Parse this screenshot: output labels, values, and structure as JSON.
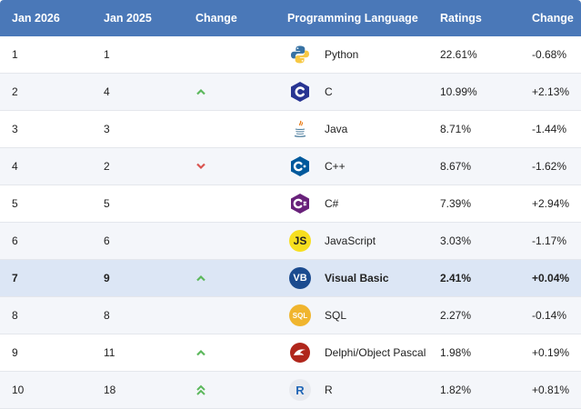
{
  "header": {
    "col_jan2026": "Jan 2026",
    "col_jan2025": "Jan 2025",
    "col_change": "Change",
    "col_language": "Programming Language",
    "col_ratings": "Ratings",
    "col_change_pct": "Change"
  },
  "colors": {
    "header_bg": "#4a78b8",
    "highlight_bg": "#dce6f5",
    "up_arrow": "#5cb85c",
    "down_arrow": "#d9534f"
  },
  "rows": [
    {
      "rank_2026": "1",
      "rank_2025": "1",
      "trend": "none",
      "language": "Python",
      "rating": "22.61%",
      "change": "-0.68%",
      "icon": "python-logo-icon"
    },
    {
      "rank_2026": "2",
      "rank_2025": "4",
      "trend": "up",
      "language": "C",
      "rating": "10.99%",
      "change": "+2.13%",
      "icon": "c-logo-icon"
    },
    {
      "rank_2026": "3",
      "rank_2025": "3",
      "trend": "none",
      "language": "Java",
      "rating": "8.71%",
      "change": "-1.44%",
      "icon": "java-logo-icon"
    },
    {
      "rank_2026": "4",
      "rank_2025": "2",
      "trend": "down",
      "language": "C++",
      "rating": "8.67%",
      "change": "-1.62%",
      "icon": "cpp-logo-icon"
    },
    {
      "rank_2026": "5",
      "rank_2025": "5",
      "trend": "none",
      "language": "C#",
      "rating": "7.39%",
      "change": "+2.94%",
      "icon": "csharp-logo-icon"
    },
    {
      "rank_2026": "6",
      "rank_2025": "6",
      "trend": "none",
      "language": "JavaScript",
      "rating": "3.03%",
      "change": "-1.17%",
      "icon": "javascript-logo-icon",
      "logo_text": "JS"
    },
    {
      "rank_2026": "7",
      "rank_2025": "9",
      "trend": "up",
      "language": "Visual Basic",
      "rating": "2.41%",
      "change": "+0.04%",
      "icon": "visual-basic-logo-icon",
      "logo_text": "VB",
      "highlighted": true
    },
    {
      "rank_2026": "8",
      "rank_2025": "8",
      "trend": "none",
      "language": "SQL",
      "rating": "2.27%",
      "change": "-0.14%",
      "icon": "sql-logo-icon",
      "logo_text": "SQL"
    },
    {
      "rank_2026": "9",
      "rank_2025": "11",
      "trend": "up",
      "language": "Delphi/Object Pascal",
      "rating": "1.98%",
      "change": "+0.19%",
      "icon": "delphi-logo-icon"
    },
    {
      "rank_2026": "10",
      "rank_2025": "18",
      "trend": "double-up",
      "language": "R",
      "rating": "1.82%",
      "change": "+0.81%",
      "icon": "r-logo-icon",
      "logo_text": "R"
    }
  ]
}
